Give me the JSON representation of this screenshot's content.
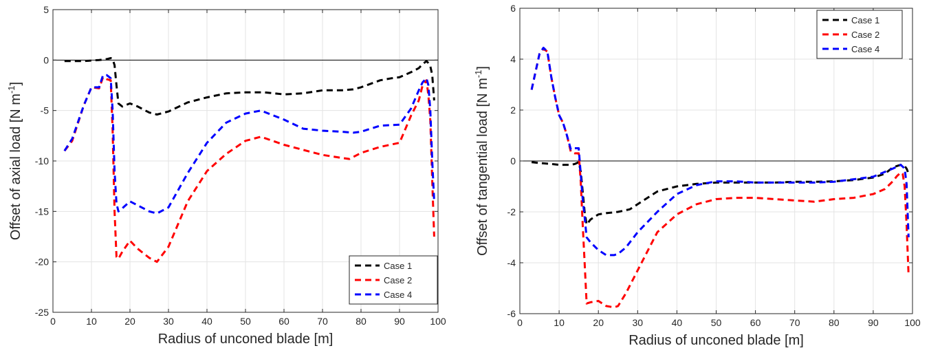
{
  "chart_data": [
    {
      "type": "line",
      "xlabel": "Radius of unconed blade [m]",
      "ylabel_prefix": "Offset of axial load [N m",
      "ylabel_sup": "-1",
      "ylabel_suffix": "]",
      "xlim": [
        0,
        100
      ],
      "ylim": [
        -25,
        5
      ],
      "xticks": [
        "0",
        "10",
        "20",
        "30",
        "40",
        "50",
        "60",
        "70",
        "80",
        "90",
        "100"
      ],
      "yticks": [
        "5",
        "0",
        "-5",
        "-10",
        "-15",
        "-20",
        "-25"
      ],
      "grid": true,
      "legend_position": "bottom-right",
      "reference_line_y": 0,
      "series": [
        {
          "name": "Case 1",
          "color": "#000000",
          "x": [
            3,
            8,
            12,
            14,
            15,
            15.5,
            16,
            16.5,
            17,
            18,
            20,
            22,
            25,
            27,
            30,
            35,
            40,
            45,
            50,
            55,
            60,
            65,
            70,
            75,
            78,
            80,
            85,
            88,
            90,
            93,
            95,
            96,
            97,
            97.5,
            98,
            98.5,
            99
          ],
          "y": [
            -0.1,
            -0.1,
            0,
            0.1,
            0.2,
            0.1,
            -0.5,
            -2.5,
            -4.3,
            -4.6,
            -4.3,
            -4.6,
            -5.2,
            -5.4,
            -5.1,
            -4.2,
            -3.7,
            -3.3,
            -3.2,
            -3.2,
            -3.4,
            -3.3,
            -3.0,
            -3.0,
            -2.9,
            -2.7,
            -2.0,
            -1.8,
            -1.7,
            -1.2,
            -0.8,
            -0.4,
            -0.1,
            -0.3,
            -0.6,
            -1.5,
            -4.0
          ]
        },
        {
          "name": "Case 2",
          "color": "#ff0000",
          "x": [
            3,
            5,
            8,
            10,
            12,
            13,
            14,
            15,
            15.5,
            16,
            16.5,
            17,
            18,
            20,
            22,
            25,
            27,
            30,
            35,
            40,
            45,
            50,
            54,
            60,
            65,
            70,
            75,
            77,
            80,
            85,
            90,
            93,
            95,
            96,
            97,
            97.5,
            98,
            98.5,
            99
          ],
          "y": [
            -9.0,
            -8.0,
            -4.5,
            -2.7,
            -2.8,
            -1.7,
            -1.9,
            -2.0,
            -7.0,
            -15.0,
            -19.5,
            -19.7,
            -19.0,
            -17.9,
            -18.7,
            -19.6,
            -20.0,
            -18.5,
            -14.0,
            -11.0,
            -9.3,
            -8.0,
            -7.6,
            -8.4,
            -8.9,
            -9.4,
            -9.7,
            -9.8,
            -9.2,
            -8.6,
            -8.2,
            -5.5,
            -4.0,
            -2.5,
            -2.0,
            -3.5,
            -6.0,
            -12.0,
            -17.5
          ]
        },
        {
          "name": "Case 4",
          "color": "#0000ff",
          "x": [
            3,
            5,
            8,
            10,
            12,
            13,
            14,
            15,
            15.5,
            16,
            16.5,
            17,
            18,
            20,
            22,
            25,
            27,
            30,
            35,
            40,
            45,
            50,
            54,
            60,
            65,
            70,
            75,
            78,
            80,
            85,
            90,
            93,
            95,
            96,
            97,
            97.5,
            98,
            98.5,
            99
          ],
          "y": [
            -9.0,
            -7.8,
            -4.5,
            -2.7,
            -2.7,
            -1.5,
            -1.5,
            -1.8,
            -5.0,
            -11.0,
            -14.2,
            -15.0,
            -14.7,
            -14.0,
            -14.4,
            -15.0,
            -15.2,
            -14.6,
            -11.2,
            -8.2,
            -6.2,
            -5.3,
            -5.0,
            -5.9,
            -6.8,
            -7.0,
            -7.1,
            -7.2,
            -7.1,
            -6.5,
            -6.4,
            -4.8,
            -3.0,
            -2.2,
            -1.8,
            -2.5,
            -5.0,
            -10.0,
            -14.0
          ]
        }
      ]
    },
    {
      "type": "line",
      "xlabel": "Radius of unconed blade [m]",
      "ylabel_prefix": "Offset of tangential load [N m",
      "ylabel_sup": "-1",
      "ylabel_suffix": "]",
      "xlim": [
        0,
        100
      ],
      "ylim": [
        -6,
        6
      ],
      "xticks": [
        "0",
        "10",
        "20",
        "30",
        "40",
        "50",
        "60",
        "70",
        "80",
        "90",
        "100"
      ],
      "yticks": [
        "6",
        "4",
        "2",
        "0",
        "-2",
        "-4",
        "-6"
      ],
      "grid": true,
      "legend_position": "top-right",
      "reference_line_y": 0,
      "series": [
        {
          "name": "Case 1",
          "color": "#000000",
          "x": [
            3,
            5,
            8,
            10,
            13,
            14,
            15,
            15.5,
            16,
            16.5,
            17,
            18,
            20,
            22,
            25,
            28,
            30,
            35,
            40,
            45,
            50,
            55,
            60,
            65,
            70,
            75,
            80,
            85,
            90,
            93,
            95,
            97,
            98,
            98.5,
            99
          ],
          "y": [
            -0.05,
            -0.08,
            -0.12,
            -0.15,
            -0.15,
            -0.12,
            -0.05,
            -0.4,
            -1.2,
            -2.0,
            -2.5,
            -2.3,
            -2.1,
            -2.05,
            -2.0,
            -1.9,
            -1.7,
            -1.2,
            -1.0,
            -0.9,
            -0.85,
            -0.85,
            -0.85,
            -0.85,
            -0.82,
            -0.82,
            -0.8,
            -0.75,
            -0.65,
            -0.5,
            -0.25,
            -0.15,
            -0.2,
            -0.3,
            -0.5
          ]
        },
        {
          "name": "Case 2",
          "color": "#ff0000",
          "x": [
            3,
            4,
            5,
            6,
            7,
            8,
            9,
            10,
            11,
            12,
            13,
            14,
            15,
            15.5,
            16,
            16.5,
            17,
            18,
            20,
            22,
            24,
            25,
            27,
            30,
            33,
            35,
            40,
            45,
            50,
            55,
            60,
            65,
            70,
            75,
            80,
            85,
            90,
            93,
            95,
            96,
            97,
            97.5,
            98,
            98.5,
            99
          ],
          "y": [
            2.8,
            3.5,
            4.2,
            4.4,
            4.3,
            3.3,
            2.5,
            1.8,
            1.5,
            1.0,
            0.35,
            0.3,
            0.3,
            -0.8,
            -2.5,
            -4.0,
            -5.6,
            -5.55,
            -5.5,
            -5.7,
            -5.75,
            -5.7,
            -5.2,
            -4.3,
            -3.4,
            -2.8,
            -2.1,
            -1.7,
            -1.5,
            -1.45,
            -1.45,
            -1.5,
            -1.55,
            -1.6,
            -1.5,
            -1.45,
            -1.3,
            -1.1,
            -0.8,
            -0.6,
            -0.45,
            -0.5,
            -1.0,
            -2.5,
            -4.5
          ]
        },
        {
          "name": "Case 4",
          "color": "#0000ff",
          "x": [
            3,
            4,
            5,
            6,
            7,
            8,
            9,
            10,
            11,
            12,
            13,
            14,
            15,
            15.5,
            16,
            16.5,
            17,
            18,
            20,
            22,
            24,
            25,
            27,
            30,
            35,
            40,
            45,
            50,
            55,
            60,
            65,
            70,
            75,
            80,
            85,
            90,
            95,
            97,
            98,
            98.5,
            99
          ],
          "y": [
            2.8,
            3.5,
            4.2,
            4.45,
            4.3,
            3.3,
            2.5,
            1.8,
            1.5,
            1.0,
            0.45,
            0.5,
            0.5,
            -0.5,
            -1.5,
            -2.2,
            -3.0,
            -3.2,
            -3.5,
            -3.7,
            -3.7,
            -3.65,
            -3.4,
            -2.8,
            -2.0,
            -1.3,
            -0.95,
            -0.8,
            -0.8,
            -0.85,
            -0.85,
            -0.85,
            -0.85,
            -0.82,
            -0.72,
            -0.62,
            -0.3,
            -0.15,
            -0.3,
            -0.9,
            -3.0
          ]
        }
      ]
    }
  ]
}
